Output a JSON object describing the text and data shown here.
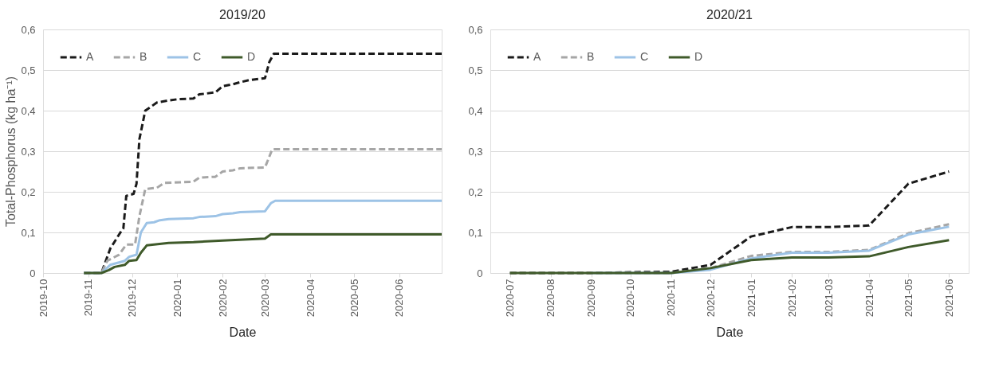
{
  "chart_data": [
    {
      "type": "line",
      "title": "2019/20",
      "xlabel": "Date",
      "ylabel": "Total-Phosphorus (kg  ha⁻¹)",
      "grid": "y",
      "legend": "top left",
      "marker": "none",
      "xlim": [
        "2019-10-01",
        "2020-06-30"
      ],
      "xticks": [
        "2019-10",
        "2019-11",
        "2019-12",
        "2020-01",
        "2020-02",
        "2020-03",
        "2020-04",
        "2020-05",
        "2020-06"
      ],
      "ylim": [
        0,
        0.6
      ],
      "yticks": [
        {
          "value": 0,
          "label": "0"
        },
        {
          "value": 0.1,
          "label": "0,1"
        },
        {
          "value": 0.2,
          "label": "0,2"
        },
        {
          "value": 0.3,
          "label": "0,3"
        },
        {
          "value": 0.4,
          "label": "0,4"
        },
        {
          "value": 0.5,
          "label": "0,5"
        },
        {
          "value": 0.6,
          "label": "0,6"
        }
      ],
      "series": [
        {
          "name": "A",
          "color": "#1a1a1a",
          "line_style": "dashed",
          "x": [
            "2019-10-29",
            "2019-11-10",
            "2019-11-16",
            "2019-11-23",
            "2019-11-25",
            "2019-11-27",
            "2019-12-02",
            "2019-12-04",
            "2019-12-06",
            "2019-12-10",
            "2019-12-14",
            "2019-12-18",
            "2019-12-26",
            "2020-01-01",
            "2020-01-12",
            "2020-01-16",
            "2020-01-27",
            "2020-02-01",
            "2020-02-08",
            "2020-02-13",
            "2020-02-19",
            "2020-03-01",
            "2020-03-04",
            "2020-03-07",
            "2020-06-30"
          ],
          "values": [
            0,
            0,
            0.06,
            0.1,
            0.11,
            0.19,
            0.195,
            0.22,
            0.33,
            0.4,
            0.41,
            0.42,
            0.425,
            0.428,
            0.43,
            0.44,
            0.445,
            0.46,
            0.465,
            0.47,
            0.475,
            0.48,
            0.52,
            0.54,
            0.54
          ]
        },
        {
          "name": "B",
          "color": "#a6a6a6",
          "line_style": "dashed",
          "x": [
            "2019-10-29",
            "2019-11-10",
            "2019-11-14",
            "2019-11-22",
            "2019-11-27",
            "2019-12-03",
            "2019-12-06",
            "2019-12-10",
            "2019-12-18",
            "2019-12-23",
            "2020-01-12",
            "2020-01-16",
            "2020-01-27",
            "2020-02-01",
            "2020-02-08",
            "2020-02-13",
            "2020-03-01",
            "2020-03-06",
            "2020-06-30"
          ],
          "values": [
            0,
            0,
            0.03,
            0.045,
            0.07,
            0.07,
            0.14,
            0.207,
            0.21,
            0.222,
            0.225,
            0.235,
            0.237,
            0.25,
            0.253,
            0.258,
            0.26,
            0.305,
            0.305
          ]
        },
        {
          "name": "C",
          "color": "#9dc3e6",
          "line_style": "solid",
          "x": [
            "2019-10-29",
            "2019-11-10",
            "2019-11-16",
            "2019-11-26",
            "2019-11-29",
            "2019-12-04",
            "2019-12-07",
            "2019-12-11",
            "2019-12-16",
            "2019-12-20",
            "2019-12-26",
            "2020-01-12",
            "2020-01-16",
            "2020-01-27",
            "2020-02-01",
            "2020-02-08",
            "2020-02-13",
            "2020-03-01",
            "2020-03-05",
            "2020-03-08",
            "2020-06-30"
          ],
          "values": [
            0,
            0,
            0.02,
            0.03,
            0.04,
            0.045,
            0.1,
            0.123,
            0.125,
            0.13,
            0.133,
            0.135,
            0.138,
            0.14,
            0.145,
            0.147,
            0.15,
            0.152,
            0.172,
            0.178,
            0.178
          ]
        },
        {
          "name": "D",
          "color": "#3f5a2a",
          "line_style": "solid",
          "x": [
            "2019-10-29",
            "2019-11-10",
            "2019-11-15",
            "2019-11-19",
            "2019-11-26",
            "2019-11-29",
            "2019-12-04",
            "2019-12-07",
            "2019-12-11",
            "2019-12-16",
            "2019-12-26",
            "2020-01-12",
            "2020-02-01",
            "2020-03-01",
            "2020-03-05",
            "2020-06-30"
          ],
          "values": [
            0,
            0,
            0.007,
            0.015,
            0.02,
            0.03,
            0.032,
            0.05,
            0.068,
            0.07,
            0.074,
            0.076,
            0.08,
            0.085,
            0.095,
            0.095
          ]
        }
      ]
    },
    {
      "type": "line",
      "title": "2020/21",
      "xlabel": "Date",
      "grid": "y",
      "legend": "top left",
      "marker": "none",
      "xlim": [
        "2020-06-16",
        "2021-06-16"
      ],
      "xticks": [
        "2020-07",
        "2020-08",
        "2020-09",
        "2020-10",
        "2020-11",
        "2020-12",
        "2021-01",
        "2021-02",
        "2021-03",
        "2021-04",
        "2021-05",
        "2021-06"
      ],
      "ylim": [
        0,
        0.6
      ],
      "yticks": [
        {
          "value": 0,
          "label": "0"
        },
        {
          "value": 0.1,
          "label": "0,1"
        },
        {
          "value": 0.2,
          "label": "0,2"
        },
        {
          "value": 0.3,
          "label": "0,3"
        },
        {
          "value": 0.4,
          "label": "0,4"
        },
        {
          "value": 0.5,
          "label": "0,5"
        },
        {
          "value": 0.6,
          "label": "0,6"
        }
      ],
      "x": [
        "2020-07",
        "2020-08",
        "2020-09",
        "2020-10",
        "2020-11",
        "2020-12",
        "2021-01",
        "2021-02",
        "2021-03",
        "2021-04",
        "2021-05",
        "2021-06"
      ],
      "series": [
        {
          "name": "A",
          "color": "#1a1a1a",
          "line_style": "dashed",
          "values": [
            0,
            0,
            0,
            0.002,
            0.003,
            0.02,
            0.09,
            0.113,
            0.113,
            0.117,
            0.22,
            0.25
          ]
        },
        {
          "name": "B",
          "color": "#a6a6a6",
          "line_style": "dashed",
          "values": [
            0,
            0,
            0,
            0,
            0,
            0.012,
            0.042,
            0.052,
            0.052,
            0.057,
            0.098,
            0.12
          ]
        },
        {
          "name": "C",
          "color": "#9dc3e6",
          "line_style": "solid",
          "values": [
            null,
            null,
            0,
            0,
            0,
            0.008,
            0.036,
            0.05,
            0.05,
            0.055,
            0.095,
            0.114
          ]
        },
        {
          "name": "D",
          "color": "#3f5a2a",
          "line_style": "solid",
          "values": [
            0,
            0,
            0,
            0,
            0,
            0.012,
            0.032,
            0.038,
            0.038,
            0.041,
            0.064,
            0.081
          ]
        }
      ]
    }
  ]
}
